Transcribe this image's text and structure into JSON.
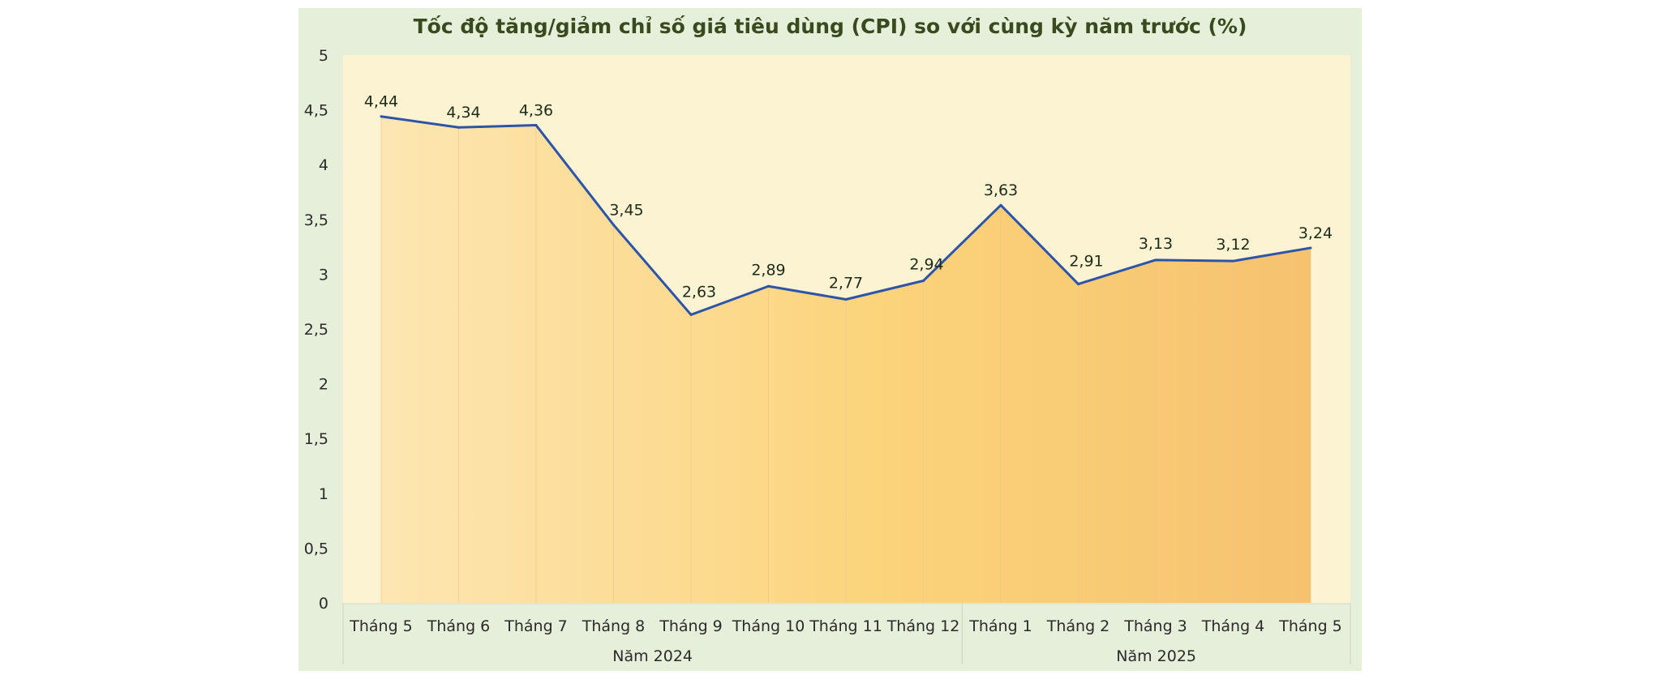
{
  "chart_data": {
    "type": "area",
    "title": "Tốc độ tăng/giảm chỉ số giá tiêu dùng (CPI) so với cùng kỳ năm trước (%)",
    "categories": [
      "Tháng 5",
      "Tháng 6",
      "Tháng 7",
      "Tháng 8",
      "Tháng 9",
      "Tháng 10",
      "Tháng 11",
      "Tháng 12",
      "Tháng 1",
      "Tháng 2",
      "Tháng 3",
      "Tháng 4",
      "Tháng 5"
    ],
    "groups": [
      {
        "label": "Năm 2024",
        "count": 8
      },
      {
        "label": "Năm 2025",
        "count": 5
      }
    ],
    "values": [
      4.44,
      4.34,
      4.36,
      3.45,
      2.63,
      2.89,
      2.77,
      2.94,
      3.63,
      2.91,
      3.13,
      3.12,
      3.24
    ],
    "data_labels": [
      "4,44",
      "4,34",
      "4,36",
      "3,45",
      "2,63",
      "2,89",
      "2,77",
      "2,94",
      "3,63",
      "2,91",
      "3,13",
      "3,12",
      "3,24"
    ],
    "y_ticks": [
      "0",
      "0,5",
      "1",
      "1,5",
      "2",
      "2,5",
      "3",
      "3,5",
      "4",
      "4,5",
      "5"
    ],
    "ylim": [
      0,
      5
    ],
    "grid": false,
    "legend": "none",
    "colors": {
      "frame": "#e5efd9",
      "plot_bg": "#fbf3d2",
      "area_light": "#fde6b2",
      "area_mid": "#fbd37a",
      "area_dark": "#f6c270",
      "line": "#2e54a8"
    }
  }
}
